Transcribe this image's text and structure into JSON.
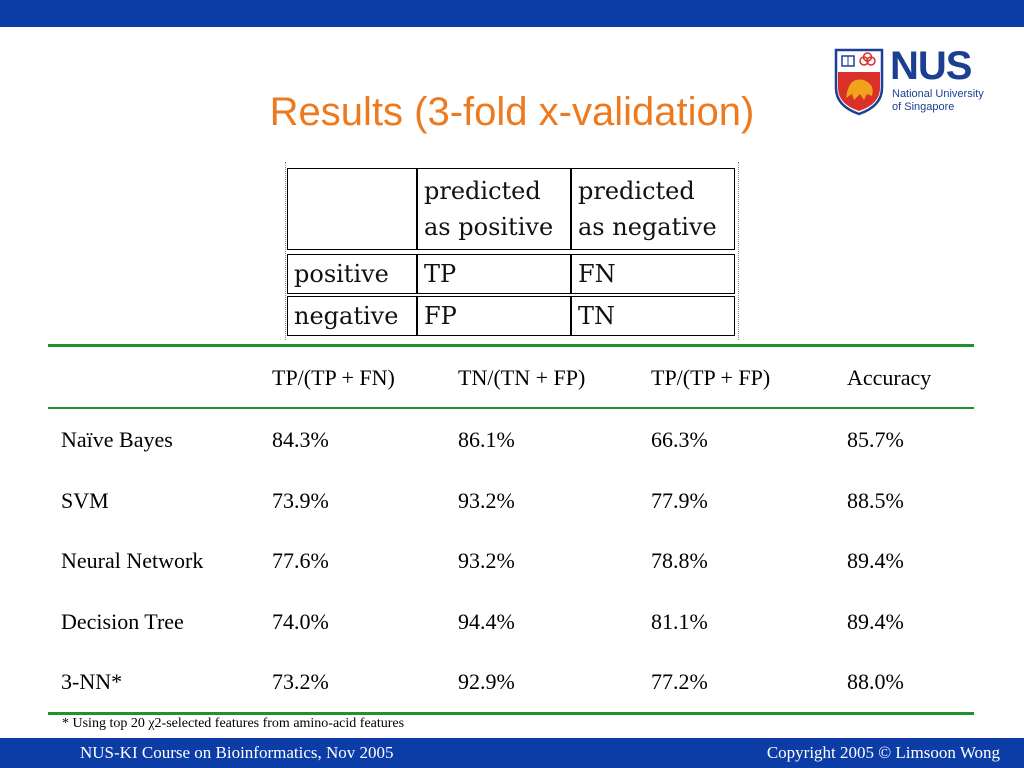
{
  "slide": {
    "title": "Results (3-fold x-validation)"
  },
  "logo": {
    "name": "NUS",
    "line1": "National University",
    "line2": "of Singapore"
  },
  "confusion_matrix": {
    "header": [
      "",
      "predicted\nas positive",
      "predicted\nas negative"
    ],
    "rows": [
      [
        "positive",
        "TP",
        "FN"
      ],
      [
        "negative",
        "FP",
        "TN"
      ]
    ]
  },
  "results_table": {
    "columns": [
      "",
      "TP/(TP + FN)",
      "TN/(TN + FP)",
      "TP/(TP + FP)",
      "Accuracy"
    ],
    "rows": [
      [
        "Naïve Bayes",
        "84.3%",
        "86.1%",
        "66.3%",
        "85.7%"
      ],
      [
        "SVM",
        "73.9%",
        "93.2%",
        "77.9%",
        "88.5%"
      ],
      [
        "Neural Network",
        "77.6%",
        "93.2%",
        "78.8%",
        "89.4%"
      ],
      [
        "Decision Tree",
        "74.0%",
        "94.4%",
        "81.1%",
        "89.4%"
      ],
      [
        "3-NN*",
        "73.2%",
        "92.9%",
        "77.2%",
        "88.0%"
      ]
    ]
  },
  "footnote": "* Using top 20 χ2-selected features from amino-acid features",
  "footer": {
    "left": "NUS-KI Course on  Bioinformatics, Nov 2005",
    "right": "Copyright 2005 © Limsoon Wong"
  },
  "colors": {
    "bar": "#0c3ca6",
    "title": "#ee7a1f",
    "rule": "#22922a",
    "nus_blue": "#1c3f94"
  }
}
